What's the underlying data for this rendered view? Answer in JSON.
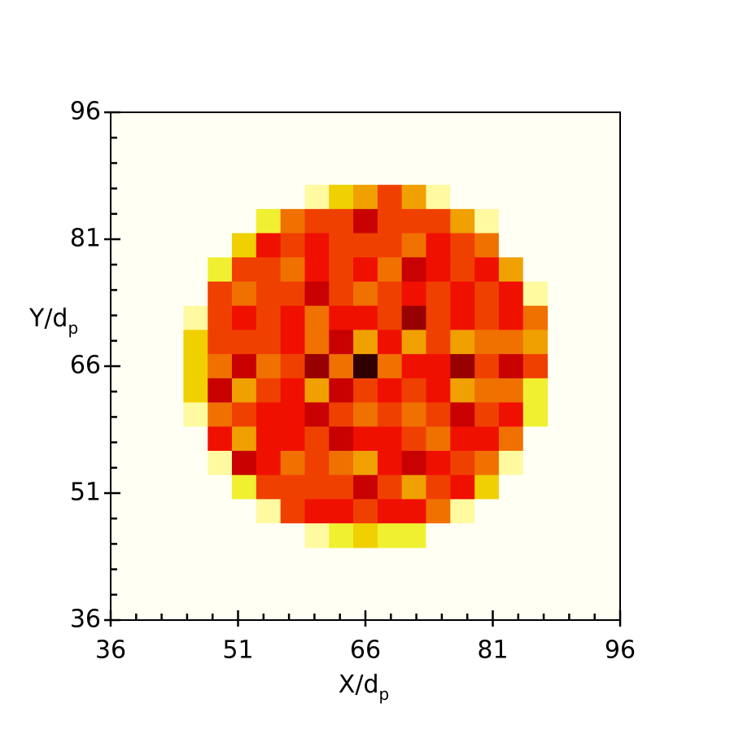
{
  "chart_data": {
    "type": "heatmap",
    "xlabel": "X/d",
    "xlabel_sub": "p",
    "ylabel": "Y/d",
    "ylabel_sub": "p",
    "xlim": [
      36,
      96
    ],
    "ylim": [
      36,
      96
    ],
    "xticks": [
      36,
      51,
      66,
      81,
      96
    ],
    "yticks": [
      36,
      51,
      66,
      81,
      96
    ],
    "minor_ticks": [
      39,
      42,
      45,
      48,
      54,
      57,
      60,
      63,
      69,
      72,
      75,
      78,
      84,
      87,
      90,
      93
    ],
    "x": [
      46.0,
      48.86,
      51.71,
      54.57,
      57.43,
      60.29,
      63.14,
      66.0,
      68.86,
      71.71,
      74.57,
      77.43,
      80.29,
      83.14,
      86.0
    ],
    "y": [
      86.0,
      83.14,
      80.29,
      77.43,
      74.57,
      71.71,
      68.86,
      66.0,
      63.14,
      60.29,
      57.43,
      54.57,
      51.71,
      48.86,
      46.0
    ],
    "colormap": [
      "#fffff4",
      "#fffaa0",
      "#f0f030",
      "#f0d000",
      "#f0a000",
      "#f07000",
      "#f04000",
      "#f01000",
      "#c80000",
      "#980000",
      "#300000"
    ],
    "z": [
      [
        0,
        0,
        0,
        0,
        0,
        1,
        3,
        4,
        6,
        4,
        1,
        0,
        0,
        0,
        0
      ],
      [
        0,
        0,
        0,
        2,
        5,
        6,
        6,
        8,
        6,
        6,
        6,
        4,
        1,
        0,
        0
      ],
      [
        0,
        0,
        3,
        7,
        6,
        7,
        6,
        6,
        6,
        5,
        7,
        6,
        5,
        0,
        0
      ],
      [
        0,
        2,
        6,
        6,
        5,
        7,
        6,
        7,
        5,
        8,
        7,
        6,
        7,
        4,
        0
      ],
      [
        0,
        6,
        5,
        6,
        6,
        8,
        6,
        5,
        6,
        7,
        6,
        7,
        6,
        7,
        1
      ],
      [
        1,
        6,
        7,
        6,
        7,
        5,
        7,
        7,
        6,
        9,
        6,
        7,
        6,
        7,
        5
      ],
      [
        3,
        6,
        6,
        6,
        7,
        5,
        8,
        4,
        7,
        4,
        6,
        4,
        5,
        5,
        4
      ],
      [
        3,
        5,
        8,
        5,
        6,
        9,
        5,
        10,
        5,
        7,
        7,
        9,
        6,
        8,
        6
      ],
      [
        3,
        8,
        4,
        6,
        7,
        4,
        8,
        6,
        7,
        6,
        7,
        4,
        5,
        5,
        2
      ],
      [
        1,
        5,
        6,
        7,
        7,
        8,
        6,
        5,
        6,
        5,
        6,
        8,
        6,
        7,
        2
      ],
      [
        0,
        7,
        4,
        7,
        7,
        6,
        8,
        7,
        7,
        6,
        5,
        7,
        7,
        5,
        0
      ],
      [
        0,
        1,
        8,
        7,
        5,
        6,
        5,
        4,
        7,
        8,
        7,
        6,
        5,
        1,
        0
      ],
      [
        0,
        0,
        2,
        6,
        6,
        6,
        6,
        8,
        6,
        4,
        6,
        7,
        3,
        0,
        0
      ],
      [
        0,
        0,
        0,
        1,
        6,
        7,
        7,
        6,
        7,
        7,
        5,
        1,
        0,
        0,
        0
      ],
      [
        0,
        0,
        0,
        0,
        0,
        1,
        2,
        3,
        2,
        2,
        0,
        0,
        0,
        0,
        0
      ]
    ]
  }
}
